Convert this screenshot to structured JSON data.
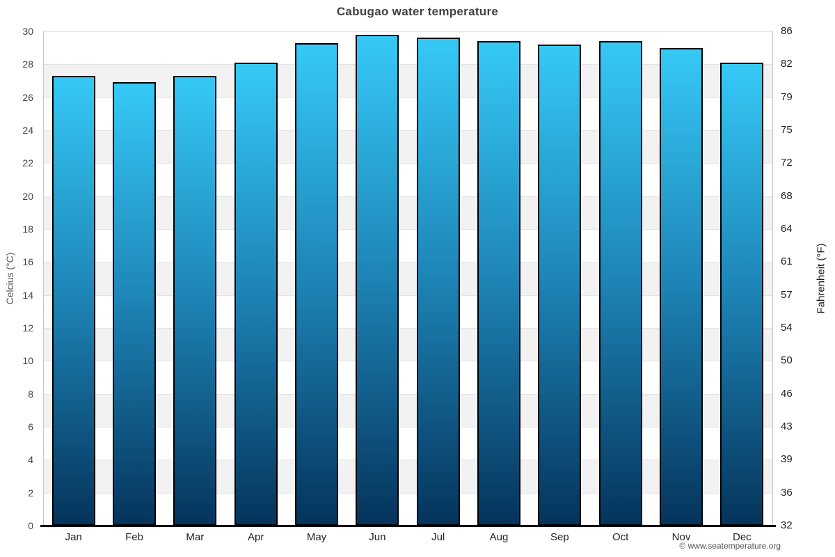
{
  "footer": {
    "copyright": "© www.seatemperature.org"
  },
  "chart_data": {
    "type": "bar",
    "title": "Cabugao water temperature",
    "categories": [
      "Jan",
      "Feb",
      "Mar",
      "Apr",
      "May",
      "Jun",
      "Jul",
      "Aug",
      "Sep",
      "Oct",
      "Nov",
      "Dec"
    ],
    "values": [
      27.3,
      26.9,
      27.3,
      28.1,
      29.3,
      29.8,
      29.6,
      29.4,
      29.2,
      29.4,
      29.0,
      28.1
    ],
    "unit": "°C",
    "ylabel_left": "Celcius (°C)",
    "ylabel_right": "Fahrenheit (°F)",
    "xlabel": "",
    "ylim": [
      0,
      30
    ],
    "ytick_step": 2,
    "yticks_celsius": [
      30,
      28,
      26,
      24,
      22,
      20,
      18,
      16,
      14,
      12,
      10,
      8,
      6,
      4,
      2,
      0
    ],
    "yticks_fahrenheit": [
      86,
      82,
      79,
      75,
      72,
      68,
      64,
      61,
      57,
      54,
      50,
      46,
      43,
      39,
      36,
      32
    ],
    "grid": "horizontal-alternating-bands",
    "legend": "none",
    "colors": {
      "bar_gradient_top": "#36c9f6",
      "bar_gradient_mid": "#1e86b8",
      "bar_gradient_bottom": "#05345c",
      "bar_border": "#000000",
      "band_alternate": "#f2f2f2",
      "band_base": "#ffffff",
      "gridline": "#e4e4e4",
      "axis_line": "#c4c4c4",
      "baseline": "#000000",
      "title": "#404040",
      "left_ticks": "#444444",
      "right_ticks": "#222222"
    }
  }
}
